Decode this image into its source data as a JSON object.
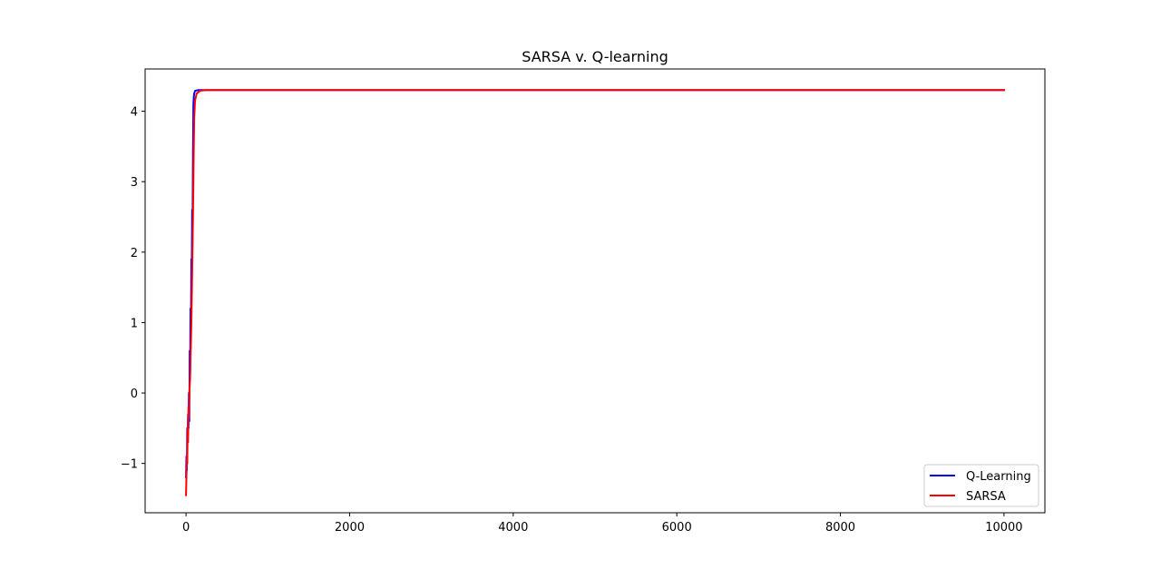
{
  "chart_data": {
    "type": "line",
    "title": "SARSA v. Q-learning",
    "xlabel": "",
    "ylabel": "",
    "xlim": [
      -500,
      10500
    ],
    "ylim": [
      -1.7,
      4.6
    ],
    "xticks": [
      0,
      2000,
      4000,
      6000,
      8000,
      10000
    ],
    "yticks": [
      -1,
      0,
      1,
      2,
      3,
      4
    ],
    "ytick_labels": [
      "−1",
      "0",
      "1",
      "2",
      "3",
      "4"
    ],
    "grid": false,
    "legend_position": "lower-right",
    "series": [
      {
        "name": "Q-Learning",
        "color": "#0000ff",
        "points": [
          [
            0,
            -1.2
          ],
          [
            5,
            -0.9
          ],
          [
            10,
            -1.1
          ],
          [
            15,
            -0.5
          ],
          [
            20,
            -0.6
          ],
          [
            25,
            -0.3
          ],
          [
            30,
            -0.5
          ],
          [
            35,
            0.0
          ],
          [
            40,
            -0.4
          ],
          [
            45,
            0.6
          ],
          [
            50,
            0.3
          ],
          [
            55,
            1.2
          ],
          [
            60,
            0.8
          ],
          [
            65,
            1.9
          ],
          [
            70,
            1.7
          ],
          [
            75,
            2.6
          ],
          [
            80,
            2.4
          ],
          [
            85,
            3.4
          ],
          [
            90,
            4.1
          ],
          [
            95,
            4.2
          ],
          [
            100,
            4.25
          ],
          [
            110,
            4.29
          ],
          [
            150,
            4.3
          ],
          [
            10000,
            4.3
          ]
        ]
      },
      {
        "name": "SARSA",
        "color": "#ff0000",
        "points": [
          [
            0,
            -1.45
          ],
          [
            5,
            -1.2
          ],
          [
            10,
            -0.9
          ],
          [
            15,
            -1.0
          ],
          [
            20,
            -0.5
          ],
          [
            25,
            -0.7
          ],
          [
            30,
            -0.2
          ],
          [
            35,
            -0.35
          ],
          [
            40,
            0.0
          ],
          [
            45,
            0.1
          ],
          [
            50,
            0.2
          ],
          [
            55,
            0.5
          ],
          [
            60,
            0.7
          ],
          [
            65,
            1.0
          ],
          [
            70,
            1.3
          ],
          [
            75,
            1.7
          ],
          [
            80,
            2.1
          ],
          [
            85,
            2.5
          ],
          [
            90,
            3.0
          ],
          [
            95,
            3.5
          ],
          [
            100,
            3.9
          ],
          [
            110,
            4.15
          ],
          [
            130,
            4.25
          ],
          [
            170,
            4.29
          ],
          [
            250,
            4.3
          ],
          [
            10000,
            4.3
          ]
        ]
      }
    ]
  }
}
